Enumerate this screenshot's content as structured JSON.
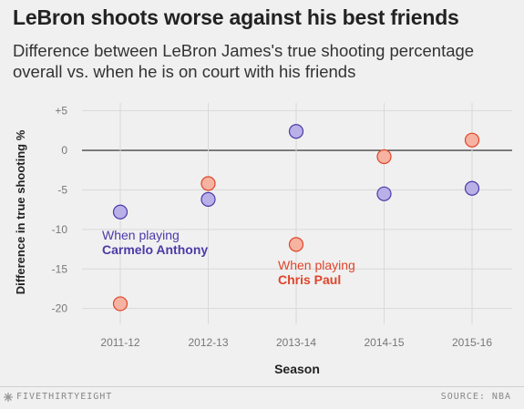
{
  "header": {
    "title": "LeBron shoots worse against his best friends",
    "subtitle": "Difference between LeBron James's true shooting percentage overall vs. when he is on court with his friends"
  },
  "chart_data": {
    "type": "scatter",
    "categories": [
      "2011-12",
      "2012-13",
      "2013-14",
      "2014-15",
      "2015-16"
    ],
    "series": [
      {
        "name": "Carmelo Anthony",
        "color": "#b9b0e8",
        "stroke": "#4a3aa8",
        "values": [
          -7.8,
          -6.2,
          2.4,
          -5.5,
          -4.8
        ]
      },
      {
        "name": "Chris Paul",
        "color": "#f6b3a1",
        "stroke": "#e0442a",
        "values": [
          -19.4,
          -4.2,
          -11.9,
          -0.8,
          1.3
        ]
      }
    ],
    "ylim": [
      -22,
      6
    ],
    "yticks": [
      "+5",
      "0",
      "-5",
      "-10",
      "-15",
      "-20"
    ],
    "ytick_values": [
      5,
      0,
      -5,
      -10,
      -15,
      -20
    ],
    "xlabel": "Season",
    "ylabel": "Difference in true shooting %",
    "grid": true,
    "annotations": [
      {
        "lead": "When playing",
        "name": "Carmelo Anthony",
        "color": "#4a3aa8"
      },
      {
        "lead": "When playing",
        "name": "Chris Paul",
        "color": "#e0442a"
      }
    ]
  },
  "footer": {
    "brand": "FIVETHIRTYEIGHT",
    "source": "SOURCE: NBA"
  }
}
